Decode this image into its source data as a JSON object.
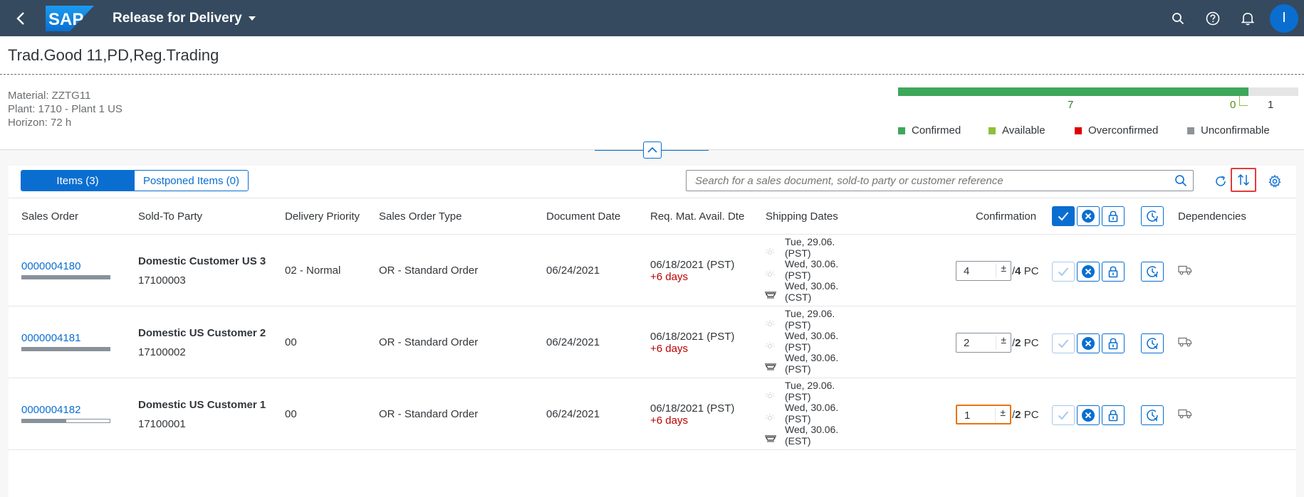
{
  "shell": {
    "app_title": "Release for Delivery",
    "logo_text": "SAP",
    "avatar_initial": "I"
  },
  "header": {
    "title": "Trad.Good 11,PD,Reg.Trading",
    "material": "Material: ZZTG11",
    "plant": "Plant: 1710 - Plant 1 US",
    "horizon": "Horizon: 72 h",
    "bar": {
      "confirmed": 7,
      "available": 0,
      "unconfirmable": 1,
      "confirmed_label": "7",
      "available_label": "0",
      "unconfirmable_label": "1"
    },
    "legend": [
      {
        "label": "Confirmed",
        "color": "#3fa75a"
      },
      {
        "label": "Available",
        "color": "#8fbf3c"
      },
      {
        "label": "Overconfirmed",
        "color": "#e00000"
      },
      {
        "label": "Unconfirmable",
        "color": "#8f9396"
      }
    ]
  },
  "toolbar": {
    "tab_items": "Items (3)",
    "tab_postponed": "Postponed Items (0)",
    "search_placeholder": "Search for a sales document, sold-to party or customer reference"
  },
  "columns": {
    "sales_order": "Sales Order",
    "sold_to": "Sold-To Party",
    "priority": "Delivery Priority",
    "order_type": "Sales Order Type",
    "doc_date": "Document Date",
    "req_date": "Req. Mat. Avail. Dte",
    "shipping": "Shipping Dates",
    "confirmation": "Confirmation",
    "dependencies": "Dependencies"
  },
  "rows": [
    {
      "order": "0000004180",
      "progress": 1.0,
      "customer": "Domestic Customer US 3",
      "customer_id": "17100003",
      "priority": "02 - Normal",
      "type": "OR - Standard Order",
      "doc_date": "06/24/2021",
      "req_date": "06/18/2021 (PST)",
      "delay": "+6 days",
      "ship": [
        "Tue, 29.06.",
        "(PST)",
        "Wed, 30.06.",
        "(PST)",
        "Wed, 30.06.",
        "(CST)"
      ],
      "confirm_value": "4",
      "qty_sep": "/",
      "qty_total": "4",
      "unit": "PC"
    },
    {
      "order": "0000004181",
      "progress": 1.0,
      "customer": "Domestic US Customer 2",
      "customer_id": "17100002",
      "priority": "00",
      "type": "OR - Standard Order",
      "doc_date": "06/24/2021",
      "req_date": "06/18/2021 (PST)",
      "delay": "+6 days",
      "ship": [
        "Tue, 29.06.",
        "(PST)",
        "Wed, 30.06.",
        "(PST)",
        "Wed, 30.06.",
        "(PST)"
      ],
      "confirm_value": "2",
      "qty_sep": "/",
      "qty_total": "2",
      "unit": "PC"
    },
    {
      "order": "0000004182",
      "progress": 0.5,
      "customer": "Domestic US Customer 1",
      "customer_id": "17100001",
      "priority": "00",
      "type": "OR - Standard Order",
      "doc_date": "06/24/2021",
      "req_date": "06/18/2021 (PST)",
      "delay": "+6 days",
      "ship": [
        "Tue, 29.06.",
        "(PST)",
        "Wed, 30.06.",
        "(PST)",
        "Wed, 30.06.",
        "(EST)"
      ],
      "confirm_value": "1",
      "qty_sep": "/",
      "qty_total": "2",
      "unit": "PC"
    }
  ],
  "icons": {
    "back": "back-icon",
    "dropdown": "chevron-down-icon",
    "search": "search-icon",
    "help": "help-icon",
    "bell": "bell-icon",
    "refresh": "refresh-icon",
    "sort": "sort-icon",
    "settings": "gear-icon",
    "confirm": "checkmark-icon",
    "reject": "cancel-icon",
    "lock": "lock-icon",
    "postpone": "clock-icon",
    "truck": "truck-icon",
    "sun": "sun-icon",
    "ship": "ship-icon"
  }
}
